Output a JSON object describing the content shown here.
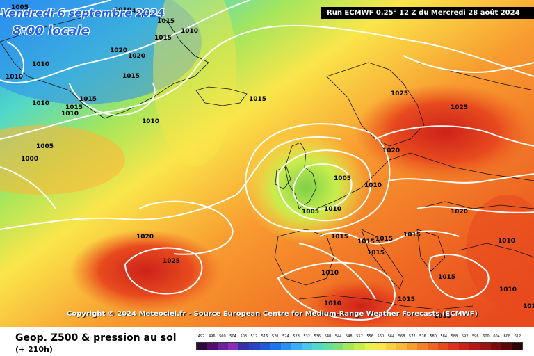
{
  "header": {
    "date": "Vendredi 6 septembre 2024",
    "time": "8:00 locale",
    "run_info": "Run ECMWF 0.25° 12 Z du Mercredi 28 août 2024"
  },
  "map": {
    "copyright": "Copyright © 2024 Meteociel.fr - Source European Centre for Medium-Range Weather Forecasts (ECMWF)",
    "pressure_labels": [
      "1005",
      "1010",
      "1015",
      "1015",
      "1015",
      "1015",
      "1010",
      "1020",
      "1020",
      "1010",
      "1010",
      "1015",
      "1015",
      "1015",
      "1010",
      "1010",
      "1010",
      "1005",
      "1000",
      "1015",
      "1025",
      "1025",
      "1020",
      "1005",
      "1010",
      "1005",
      "1010",
      "1020",
      "1025",
      "1015",
      "1015",
      "1015",
      "1015",
      "1015",
      "1010",
      "1020",
      "1010",
      "1010",
      "1015",
      "1010",
      "1015",
      "1015",
      "1015"
    ],
    "colors": {
      "ocean_blue": "#2a8cf0",
      "contour": "#ffffff",
      "low_center": "#7ed04a",
      "high_center": "#e02020"
    }
  },
  "footer": {
    "title": "Geop. Z500 & pression au sol",
    "subtitle": "(+ 210h)"
  },
  "legend": {
    "labels": [
      "492",
      "496",
      "500",
      "504",
      "508",
      "512",
      "516",
      "520",
      "524",
      "528",
      "532",
      "536",
      "540",
      "544",
      "548",
      "552",
      "556",
      "560",
      "564",
      "568",
      "572",
      "576",
      "580",
      "584",
      "588",
      "592",
      "596",
      "600",
      "604",
      "608",
      "612"
    ],
    "colors": [
      "#2e0a3c",
      "#50106a",
      "#6e1f9a",
      "#8a2db8",
      "#3a2fa8",
      "#2a43c0",
      "#1f5ad8",
      "#1c74ee",
      "#2790f4",
      "#3aaef4",
      "#4ac7e8",
      "#52d8c8",
      "#60e0a2",
      "#7ee07c",
      "#a4e65c",
      "#c8ee4c",
      "#e8f24a",
      "#fae64a",
      "#fcd042",
      "#fbb83a",
      "#f89c30",
      "#f48028",
      "#ee6422",
      "#e84a1e",
      "#de321c",
      "#cc221a",
      "#b41818",
      "#9a1212",
      "#7c0c0c",
      "#5a0808",
      "#300404"
    ]
  }
}
